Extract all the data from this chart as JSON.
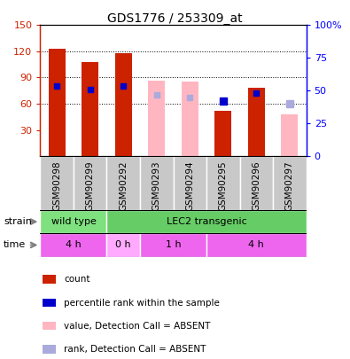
{
  "title": "GDS1776 / 253309_at",
  "samples": [
    "GSM90298",
    "GSM90299",
    "GSM90292",
    "GSM90293",
    "GSM90294",
    "GSM90295",
    "GSM90296",
    "GSM90297"
  ],
  "count_values": [
    123,
    108,
    118,
    null,
    null,
    52,
    78,
    null
  ],
  "count_absent_values": [
    null,
    null,
    null,
    86,
    85,
    null,
    null,
    48
  ],
  "rank_values": [
    80,
    76,
    80,
    null,
    null,
    null,
    72,
    null
  ],
  "rank_absent_values": [
    null,
    null,
    null,
    70,
    67,
    null,
    null,
    null
  ],
  "percentile_rank": [
    null,
    null,
    null,
    null,
    null,
    63,
    null,
    null
  ],
  "percentile_rank_absent": [
    null,
    null,
    null,
    null,
    null,
    null,
    null,
    60
  ],
  "strain_groups": [
    {
      "label": "wild type",
      "start": 0,
      "end": 2,
      "color": "#7EE07E"
    },
    {
      "label": "LEC2 transgenic",
      "start": 2,
      "end": 8,
      "color": "#66CC66"
    }
  ],
  "time_groups": [
    {
      "label": "4 h",
      "start": 0,
      "end": 2,
      "color": "#EE66EE"
    },
    {
      "label": "0 h",
      "start": 2,
      "end": 3,
      "color": "#FFAAFF"
    },
    {
      "label": "1 h",
      "start": 3,
      "end": 5,
      "color": "#EE66EE"
    },
    {
      "label": "4 h",
      "start": 5,
      "end": 8,
      "color": "#EE66EE"
    }
  ],
  "ylim_left": [
    0,
    150
  ],
  "ylim_right": [
    0,
    100
  ],
  "yticks_left": [
    30,
    60,
    90,
    120,
    150
  ],
  "yticks_right": [
    0,
    25,
    50,
    75,
    100
  ],
  "left_tick_labels": [
    "30",
    "60",
    "90",
    "120",
    "150"
  ],
  "right_tick_labels": [
    "0",
    "25",
    "50",
    "75",
    "100%"
  ],
  "red_color": "#CC2200",
  "pink_color": "#FFB6C1",
  "blue_color": "#0000CC",
  "light_blue_color": "#AAAADD",
  "gray_bg": "#C8C8C8",
  "legend_items": [
    {
      "label": "count",
      "color": "#CC2200"
    },
    {
      "label": "percentile rank within the sample",
      "color": "#0000CC"
    },
    {
      "label": "value, Detection Call = ABSENT",
      "color": "#FFB6C1"
    },
    {
      "label": "rank, Detection Call = ABSENT",
      "color": "#AAAADD"
    }
  ]
}
